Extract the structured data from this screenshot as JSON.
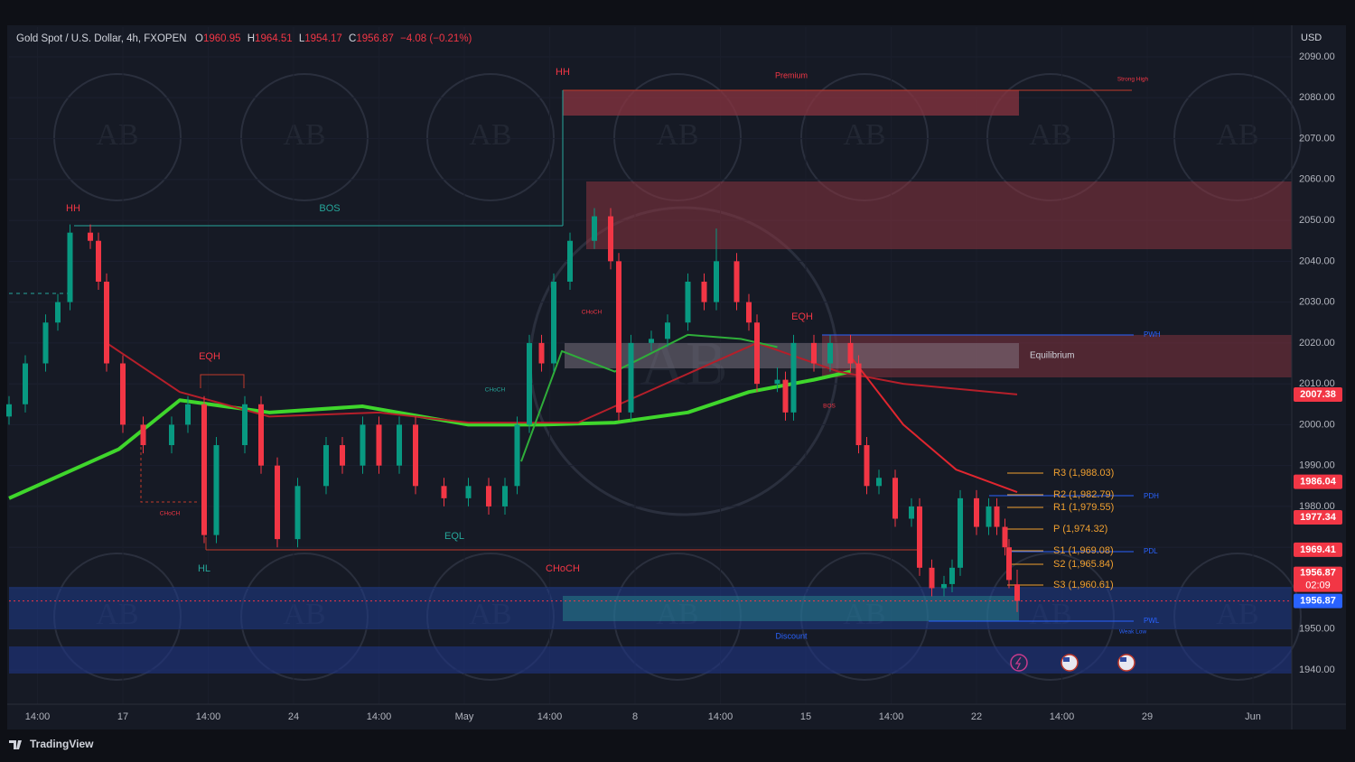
{
  "chart_data": {
    "type": "candlestick",
    "title": "Gold Spot / U.S. Dollar, 4h, FXOPEN",
    "header": {
      "o_label": "O",
      "o": "1960.95",
      "h_label": "H",
      "h": "1964.51",
      "l_label": "L",
      "l": "1954.17",
      "c_label": "C",
      "c": "1956.87",
      "change": "−4.08 (−0.21%)"
    },
    "currency": "USD",
    "brand": "TradingView",
    "watermark": "AB",
    "up_color": "#089981",
    "down_color": "#f23645",
    "xlim": [
      0,
      314
    ],
    "xticks": [
      {
        "value": 7,
        "label": "14:00"
      },
      {
        "value": 28,
        "label": "17"
      },
      {
        "value": 49,
        "label": "14:00"
      },
      {
        "value": 70,
        "label": "24"
      },
      {
        "value": 91,
        "label": "14:00"
      },
      {
        "value": 112,
        "label": "May"
      },
      {
        "value": 133,
        "label": "14:00"
      },
      {
        "value": 154,
        "label": "8"
      },
      {
        "value": 175,
        "label": "14:00"
      },
      {
        "value": 196,
        "label": "15"
      },
      {
        "value": 217,
        "label": "14:00"
      },
      {
        "value": 238,
        "label": "22"
      },
      {
        "value": 259,
        "label": "14:00"
      },
      {
        "value": 280,
        "label": "29"
      },
      {
        "value": 306,
        "label": "Jun"
      }
    ],
    "ylim": [
      1931.6,
      2097.3
    ],
    "yticks": [
      {
        "value": 1940,
        "label": "1940.00"
      },
      {
        "value": 1950,
        "label": "1950.00"
      },
      {
        "value": 1960,
        "label": "1960.00"
      },
      {
        "value": 1970,
        "label": "1970.00"
      },
      {
        "value": 1980,
        "label": "1980.00"
      },
      {
        "value": 1990,
        "label": "1990.00"
      },
      {
        "value": 2000,
        "label": "2000.00"
      },
      {
        "value": 2010,
        "label": "2010.00"
      },
      {
        "value": 2020,
        "label": "2020.00"
      },
      {
        "value": 2030,
        "label": "2030.00"
      },
      {
        "value": 2040,
        "label": "2040.00"
      },
      {
        "value": 2050,
        "label": "2050.00"
      },
      {
        "value": 2060,
        "label": "2060.00"
      },
      {
        "value": 2070,
        "label": "2070.00"
      },
      {
        "value": 2080,
        "label": "2080.00"
      },
      {
        "value": 2090,
        "label": "2090.00"
      }
    ],
    "grid": true,
    "x": [
      0,
      4,
      9,
      12,
      15,
      20,
      22,
      24,
      28,
      33,
      40,
      44,
      48,
      51,
      58,
      62,
      66,
      71,
      78,
      82,
      87,
      91,
      96,
      100,
      107,
      113,
      118,
      122,
      125,
      128,
      131,
      134,
      138,
      144,
      148,
      150,
      153,
      158,
      162,
      167,
      171,
      174,
      179,
      182,
      184,
      189,
      191,
      193,
      198,
      202,
      207,
      209,
      211,
      214,
      218,
      222,
      224,
      227,
      230,
      232,
      234,
      238,
      241,
      243,
      245,
      246,
      248
    ],
    "ohlc": [
      [
        2002,
        2007,
        2000,
        2005
      ],
      [
        2005,
        2017,
        2003,
        2015
      ],
      [
        2015,
        2027,
        2013,
        2025
      ],
      [
        2025,
        2032,
        2023,
        2030
      ],
      [
        2030,
        2049,
        2028,
        2047
      ],
      [
        2047,
        2049,
        2043,
        2045
      ],
      [
        2045,
        2047,
        2033,
        2035
      ],
      [
        2035,
        2037,
        2013,
        2015
      ],
      [
        2015,
        2017,
        1998,
        2000
      ],
      [
        2000,
        2002,
        1993,
        1995
      ],
      [
        1995,
        2002,
        1993,
        2000
      ],
      [
        2000,
        2007,
        1998,
        2005
      ],
      [
        2005,
        2007,
        1971,
        1973
      ],
      [
        1973,
        1997,
        1971,
        1995
      ],
      [
        1995,
        2007,
        1993,
        2005
      ],
      [
        2005,
        2007,
        1988,
        1990
      ],
      [
        1990,
        1992,
        1970,
        1972
      ],
      [
        1972,
        1987,
        1970,
        1985
      ],
      [
        1985,
        1997,
        1983,
        1995
      ],
      [
        1995,
        1997,
        1988,
        1990
      ],
      [
        1990,
        2002,
        1988,
        2000
      ],
      [
        2000,
        2002,
        1988,
        1990
      ],
      [
        1990,
        2002,
        1988,
        2000
      ],
      [
        2000,
        2002,
        1983,
        1985
      ],
      [
        1985,
        1987,
        1980,
        1982
      ],
      [
        1982,
        1987,
        1980,
        1985
      ],
      [
        1985,
        1987,
        1978,
        1980
      ],
      [
        1980,
        1987,
        1978,
        1985
      ],
      [
        1985,
        2002,
        1983,
        2000
      ],
      [
        2000,
        2022,
        1998,
        2020
      ],
      [
        2020,
        2022,
        2013,
        2015
      ],
      [
        2015,
        2037,
        2013,
        2035
      ],
      [
        2035,
        2047,
        2033,
        2045
      ],
      [
        2045,
        2053,
        2043,
        2051
      ],
      [
        2051,
        2053,
        2038,
        2040
      ],
      [
        2040,
        2042,
        2001,
        2003
      ],
      [
        2003,
        2022,
        2001,
        2020
      ],
      [
        2020,
        2023,
        2018,
        2021
      ],
      [
        2021,
        2027,
        2019,
        2025
      ],
      [
        2025,
        2037,
        2023,
        2035
      ],
      [
        2035,
        2037,
        2028,
        2030
      ],
      [
        2030,
        2048,
        2028,
        2040
      ],
      [
        2040,
        2042,
        2028,
        2030
      ],
      [
        2030,
        2032,
        2023,
        2025
      ],
      [
        2025,
        2027,
        2008,
        2010
      ],
      [
        2010,
        2014,
        2008,
        2011
      ],
      [
        2011,
        2013,
        2001,
        2003
      ],
      [
        2003,
        2022,
        2001,
        2020
      ],
      [
        2020,
        2022,
        2013,
        2015
      ],
      [
        2015,
        2022,
        2013,
        2020
      ],
      [
        2020,
        2022,
        2013,
        2015
      ],
      [
        2015,
        2017,
        1993,
        1995
      ],
      [
        1995,
        1997,
        1983,
        1985
      ],
      [
        1985,
        1989,
        1983,
        1987
      ],
      [
        1987,
        1989,
        1975,
        1977
      ],
      [
        1977,
        1982,
        1975,
        1980
      ],
      [
        1980,
        1982,
        1963,
        1965
      ],
      [
        1965,
        1967,
        1958,
        1960
      ],
      [
        1960,
        1963,
        1958,
        1961
      ],
      [
        1961,
        1967,
        1959,
        1965
      ],
      [
        1965,
        1984,
        1963,
        1982
      ],
      [
        1982,
        1984,
        1973,
        1975
      ],
      [
        1975,
        1982,
        1973,
        1980
      ],
      [
        1980,
        1982,
        1973,
        1975
      ],
      [
        1975,
        1977,
        1968,
        1970
      ],
      [
        1970,
        1972,
        1960,
        1962
      ],
      [
        1960.95,
        1964.51,
        1954.17,
        1956.87
      ]
    ],
    "lines": [
      {
        "color": "#3fd62c",
        "x": [
          0,
          27,
          42,
          64,
          87,
          113,
          131,
          149,
          167,
          182,
          198,
          207
        ],
        "values": [
          1982,
          1994,
          2006,
          2003,
          2004.5,
          2000,
          2000,
          2000.5,
          2003,
          2008,
          2011,
          2013
        ]
      },
      {
        "color": "#b51f2a",
        "x": [
          24,
          42,
          64,
          91,
          113,
          140,
          184,
          204,
          220,
          248
        ],
        "values": [
          2020,
          2008,
          2002,
          2003,
          2000.5,
          2000.5,
          2020,
          2013,
          2010,
          2007.4
        ]
      },
      {
        "color": "#e0262f",
        "x": [
          207,
          220,
          233,
          248
        ],
        "values": [
          2016.7,
          2000,
          1989,
          1983.5
        ]
      },
      {
        "color": "#2fae3a",
        "x": [
          126,
          136,
          149,
          167,
          180,
          189
        ],
        "values": [
          1991,
          2018,
          2013,
          2022,
          2021,
          2019
        ]
      }
    ],
    "price_labels": [
      {
        "value": 2007.38,
        "color": "#f23645"
      },
      {
        "value": 1986.04,
        "color": "#f23645"
      },
      {
        "value": 1977.34,
        "color": "#f23645"
      },
      {
        "value": 1969.41,
        "color": "#f23645"
      },
      {
        "value": 1956.87,
        "color": "#2962ff"
      }
    ],
    "countdown": {
      "price": "1956.87",
      "timer": "02:09"
    },
    "annotations": [
      "HH",
      "HH",
      "BOS",
      "EQH",
      "EQH",
      "HL",
      "EQL",
      "CHoCH",
      "Premium",
      "Equilibrium",
      "Discount",
      "Strong High",
      "Weak Low",
      "CHoCH",
      "CHoCH",
      "CHoCH",
      "BOS"
    ],
    "pivots": [
      "R3 (1,988.03)",
      "R2 (1,982.79)",
      "R1 (1,979.55)",
      "P (1,974.32)",
      "S1 (1,969.08)",
      "S2 (1,965.84)",
      "S3 (1,960.61)"
    ],
    "levels": [
      "PWH",
      "PDH",
      "PDL",
      "PWL"
    ]
  }
}
